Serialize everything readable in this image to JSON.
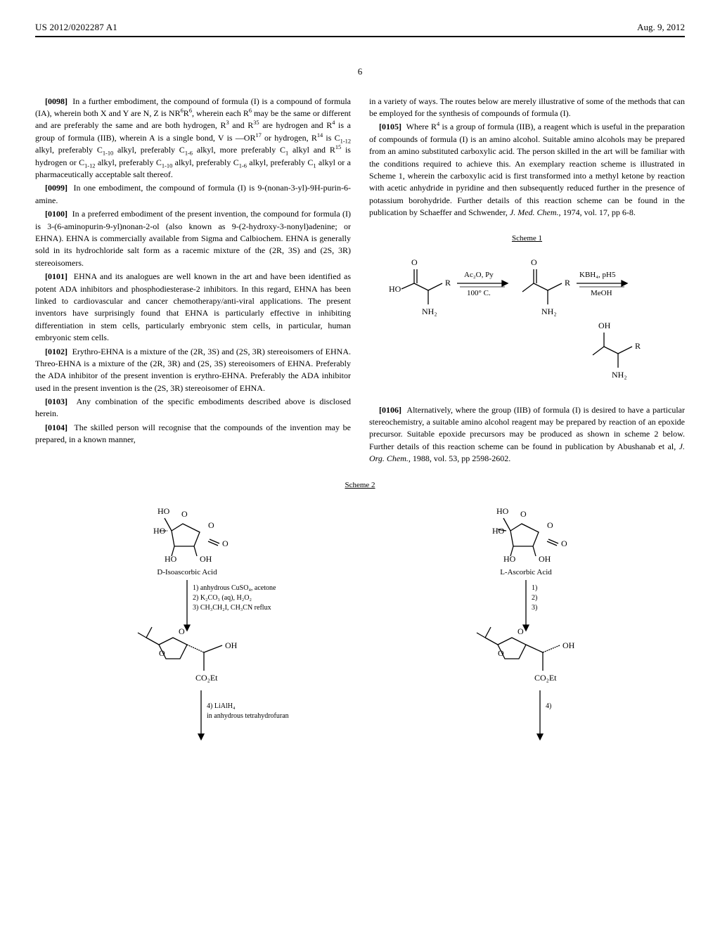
{
  "header": {
    "pub_id": "US 2012/0202287 A1",
    "date": "Aug. 9, 2012"
  },
  "page_number": "6",
  "columns": {
    "left": [
      {
        "num": "[0098]",
        "html": "In a further embodiment, the compound of formula (I) is a compound of formula (IA), wherein both X and Y are N, Z is NR<sup>6</sup>R<sup>6</sup>, wherein each R<sup>6</sup> may be the same or different and are preferably the same and are both hydrogen, R<sup>3</sup> and R<sup>35</sup> are hydrogen and R<sup>4</sup> is a group of formula (IIB), wherein A is a single bond, V is —OR<sup>17</sup> or hydrogen, R<sup>14</sup> is C<sub>1-12</sub> alkyl, preferably C<sub>1-10</sub> alkyl, preferably C<sub>1-6</sub> alkyl, more preferably C<sub>1</sub> alkyl and R<sup>15</sup> is hydrogen or C<sub>1-12</sub> alkyl, preferably C<sub>1-10</sub> alkyl, preferably C<sub>1-6</sub> alkyl, preferably C<sub>1</sub> alkyl or a pharmaceutically acceptable salt thereof."
      },
      {
        "num": "[0099]",
        "html": "In one embodiment, the compound of formula (I) is 9-(nonan-3-yl)-9H-purin-6-amine."
      },
      {
        "num": "[0100]",
        "html": "In a preferred embodiment of the present invention, the compound for formula (I) is 3-(6-aminopurin-9-yl)nonan-2-ol (also known as 9-(2-hydroxy-3-nonyl)adenine; or EHNA). EHNA is commercially available from Sigma and Calbiochem. EHNA is generally sold in its hydrochloride salt form as a racemic mixture of the (2R, 3S) and (2S, 3R) stereoisomers."
      },
      {
        "num": "[0101]",
        "html": "EHNA and its analogues are well known in the art and have been identified as potent ADA inhibitors and phosphodiesterase-2 inhibitors. In this regard, EHNA has been linked to cardiovascular and cancer chemotherapy/anti-viral applications. The present inventors have surprisingly found that EHNA is particularly effective in inhibiting differentiation in stem cells, particularly embryonic stem cells, in particular, human embryonic stem cells."
      },
      {
        "num": "[0102]",
        "html": "Erythro-EHNA is a mixture of the (2R, 3S) and (2S, 3R) stereoisomers of EHNA. Threo-EHNA is a mixture of the (2R, 3R) and (2S, 3S) stereoisomers of EHNA. Preferably the ADA inhibitor of the present invention is erythro-EHNA. Preferably the ADA inhibitor used in the present invention is the (2S, 3R) stereoisomer of EHNA."
      },
      {
        "num": "[0103]",
        "html": "Any combination of the specific embodiments described above is disclosed herein."
      },
      {
        "num": "[0104]",
        "html": "The skilled person will recognise that the compounds of the invention may be prepared, in a known manner,"
      }
    ],
    "right": [
      {
        "num": "",
        "html": "in a variety of ways. The routes below are merely illustrative of some of the methods that can be employed for the synthesis of compounds of formula (I)."
      },
      {
        "num": "[0105]",
        "html": "Where R<sup>4</sup> is a group of formula (IIB), a reagent which is useful in the preparation of compounds of formula (I) is an amino alcohol. Suitable amino alcohols may be prepared from an amino substituted carboxylic acid. The person skilled in the art will be familiar with the conditions required to achieve this. An exemplary reaction scheme is illustrated in Scheme 1, wherein the carboxylic acid is first transformed into a methyl ketone by reaction with acetic anhydride in pyridine and then subsequently reduced further in the presence of potassium borohydride. Further details of this reaction scheme can be found in the publication by Schaeffer and Schwender, <span class=\"italic\">J. Med. Chem.,</span> 1974, vol. 17, pp 6-8."
      },
      {
        "num": "[0106]",
        "html": "Alternatively, where the group (IIB) of formula (I) is desired to have a particular stereochemistry, a suitable amino alcohol reagent may be prepared by reaction of an epoxide precursor. Suitable epoxide precursors may be produced as shown in scheme 2 below. Further details of this reaction scheme can be found in publication by Abushanab et al, <span class=\"italic\">J. Org. Chem.,</span> 1988, vol. 53, pp 2598-2602."
      }
    ]
  },
  "schemes": {
    "scheme1": {
      "label": "Scheme 1",
      "reagents_step1_top": "Ac₂O, Py",
      "reagents_step1_bottom": "100° C.",
      "reagents_step2_top": "KBH₄, pH5",
      "reagents_step2_bottom": "MeOH",
      "labels": {
        "HO": "HO",
        "O": "O",
        "R": "R",
        "NH2": "NH₂",
        "OH": "OH"
      }
    },
    "scheme2": {
      "label": "Scheme 2",
      "left": {
        "acid_name": "D-Isoascorbic Acid",
        "steps": [
          "1) anhydrous CuSO₄, acetone",
          "2) K₂CO₃ (aq), H₂O₂",
          "3) CH₃CH₂I, CH₃CN reflux"
        ],
        "step4": [
          "4) LiAlH₄",
          "in anhydrous tetrahydrofuran"
        ],
        "labels": {
          "HO": "HO",
          "O": "O",
          "OH": "OH",
          "CO2Et": "CO₂Et"
        }
      },
      "right": {
        "acid_name": "L-Ascorbic Acid",
        "steps": [
          "1)",
          "2)",
          "3)"
        ],
        "step4": "4)",
        "labels": {
          "HO": "HO",
          "O": "O",
          "OH": "OH",
          "CO2Et": "CO₂Et"
        }
      }
    }
  },
  "colors": {
    "text": "#000000",
    "background": "#ffffff",
    "rule": "#000000"
  },
  "typography": {
    "body_family": "Times New Roman, serif",
    "body_size_pt": 9,
    "header_size_pt": 10
  }
}
